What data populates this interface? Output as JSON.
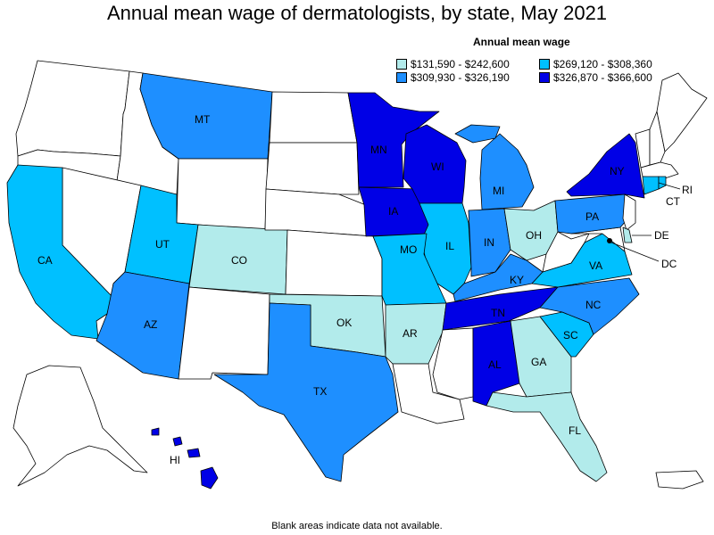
{
  "title": "Annual mean wage of dermatologists, by state, May 2021",
  "legend": {
    "title": "Annual mean wage",
    "bins": [
      {
        "label": "$131,590 - $242,600",
        "color": "#b2ebeb"
      },
      {
        "label": "$269,120 - $308,360",
        "color": "#00c0ff"
      },
      {
        "label": "$309,930 - $326,190",
        "color": "#1e8fff"
      },
      {
        "label": "$326,870 - $366,600",
        "color": "#0000e6"
      }
    ]
  },
  "footnote": "Blank areas indicate data not available.",
  "states": {
    "MT": {
      "label": "MT",
      "bin": 2
    },
    "CA": {
      "label": "CA",
      "bin": 1
    },
    "UT": {
      "label": "UT",
      "bin": 1
    },
    "CO": {
      "label": "CO",
      "bin": 0
    },
    "AZ": {
      "label": "AZ",
      "bin": 2
    },
    "TX": {
      "label": "TX",
      "bin": 2
    },
    "OK": {
      "label": "OK",
      "bin": 0
    },
    "MN": {
      "label": "MN",
      "bin": 3
    },
    "IA": {
      "label": "IA",
      "bin": 3
    },
    "MO": {
      "label": "MO",
      "bin": 1
    },
    "AR": {
      "label": "AR",
      "bin": 0
    },
    "WI": {
      "label": "WI",
      "bin": 3
    },
    "IL": {
      "label": "IL",
      "bin": 1
    },
    "MI": {
      "label": "MI",
      "bin": 2
    },
    "IN": {
      "label": "IN",
      "bin": 2
    },
    "OH": {
      "label": "OH",
      "bin": 0
    },
    "KY": {
      "label": "KY",
      "bin": 2
    },
    "TN": {
      "label": "TN",
      "bin": 3
    },
    "AL": {
      "label": "AL",
      "bin": 3
    },
    "GA": {
      "label": "GA",
      "bin": 0
    },
    "FL": {
      "label": "FL",
      "bin": 0
    },
    "SC": {
      "label": "SC",
      "bin": 1
    },
    "NC": {
      "label": "NC",
      "bin": 2
    },
    "VA": {
      "label": "VA",
      "bin": 1
    },
    "PA": {
      "label": "PA",
      "bin": 2
    },
    "NY": {
      "label": "NY",
      "bin": 3
    },
    "CT": {
      "label": "CT",
      "bin": 1
    },
    "RI": {
      "label": "RI",
      "bin": 1
    },
    "DE": {
      "label": "DE",
      "bin": 0
    },
    "DC": {
      "label": "DC",
      "bin": 3
    },
    "HI": {
      "label": "HI",
      "bin": 3
    }
  }
}
